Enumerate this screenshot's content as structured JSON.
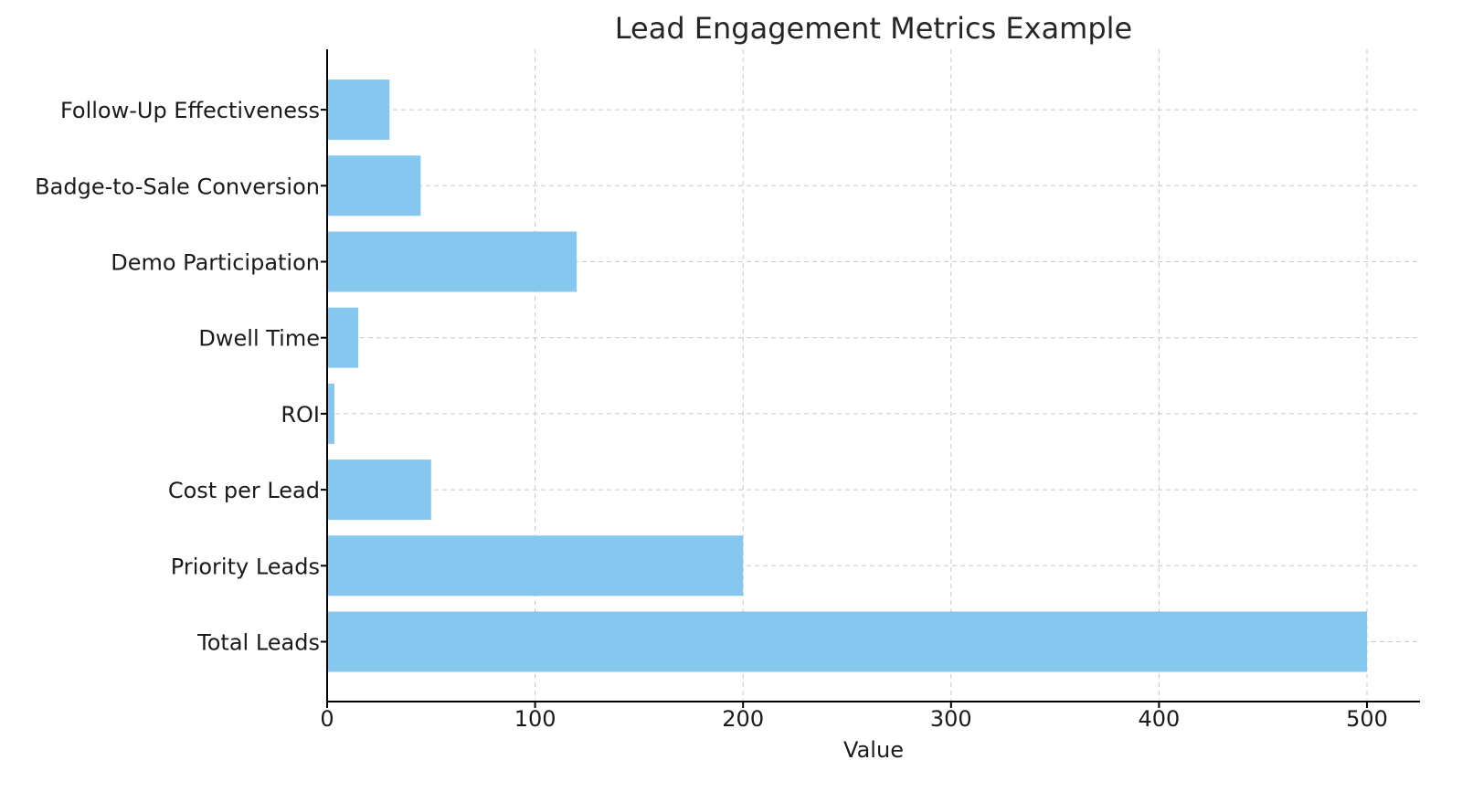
{
  "chart_data": {
    "type": "bar",
    "orientation": "horizontal",
    "title": "Lead Engagement Metrics Example",
    "xlabel": "Value",
    "ylabel": "",
    "categories": [
      "Total Leads",
      "Priority Leads",
      "Cost per Lead",
      "ROI",
      "Dwell Time",
      "Demo Participation",
      "Badge-to-Sale Conversion",
      "Follow-Up Effectiveness"
    ],
    "values": [
      500,
      200,
      50,
      3.5,
      15,
      120,
      45,
      30
    ],
    "xlim": [
      0,
      525
    ],
    "xticks": [
      0,
      100,
      200,
      300,
      400,
      500
    ],
    "grid": true,
    "bar_color": "#85C7EE"
  }
}
